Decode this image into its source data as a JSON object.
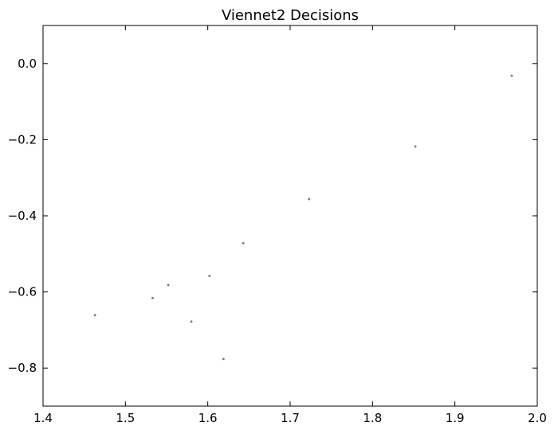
{
  "chart_data": {
    "type": "scatter",
    "title": "Viennet2 Decisions",
    "xlabel": "",
    "ylabel": "",
    "xlim": [
      1.4,
      2.0
    ],
    "ylim": [
      -0.9,
      0.1
    ],
    "xticks": [
      1.4,
      1.5,
      1.6,
      1.7,
      1.8,
      1.9,
      2.0
    ],
    "yticks": [
      0.0,
      -0.2,
      -0.4,
      -0.6,
      -0.8
    ],
    "xtick_labels": [
      "1.4",
      "1.5",
      "1.6",
      "1.7",
      "1.8",
      "1.9",
      "2.0"
    ],
    "ytick_labels": [
      "0.0",
      "−0.2",
      "−0.4",
      "−0.6",
      "−0.8"
    ],
    "grid": false,
    "marker_color": "#808080",
    "series": [
      {
        "x": [
          1.969,
          1.852,
          1.723,
          1.643,
          1.602,
          1.552,
          1.533,
          1.463,
          1.58,
          1.619
        ],
        "y": [
          -0.032,
          -0.218,
          -0.356,
          -0.472,
          -0.558,
          -0.582,
          -0.616,
          -0.661,
          -0.678,
          -0.776
        ]
      }
    ]
  }
}
